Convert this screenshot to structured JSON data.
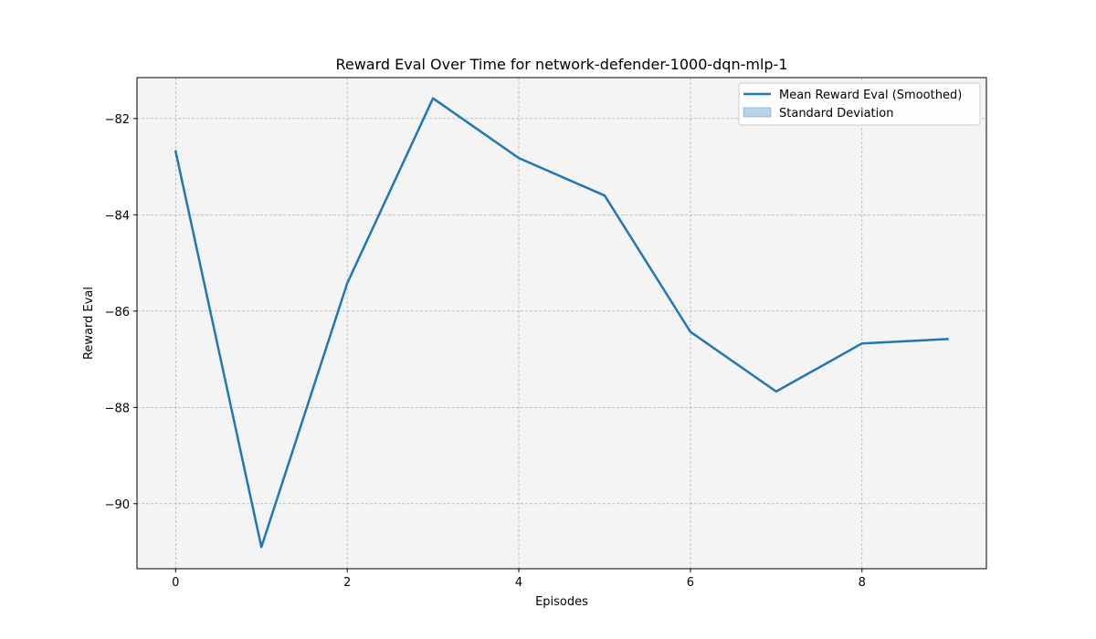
{
  "chart_data": {
    "type": "line",
    "title": "Reward Eval Over Time for network-defender-1000-dqn-mlp-1",
    "xlabel": "Episodes",
    "ylabel": "Reward Eval",
    "xlim": [
      -0.45,
      9.45
    ],
    "ylim": [
      -91.35,
      -81.15
    ],
    "x_ticks": [
      0,
      2,
      4,
      6,
      8
    ],
    "y_ticks": [
      -90,
      -88,
      -86,
      -84,
      -82
    ],
    "x_tick_labels": [
      "0",
      "2",
      "4",
      "6",
      "8"
    ],
    "y_tick_labels": [
      "−90",
      "−88",
      "−86",
      "−84",
      "−82"
    ],
    "grid": true,
    "legend_position": "top-right",
    "series": [
      {
        "name": "Mean Reward Eval (Smoothed)",
        "color": "#1f77b4",
        "x": [
          0,
          1,
          2,
          3,
          4,
          5,
          6,
          7,
          8,
          9
        ],
        "values": [
          -82.68,
          -90.9,
          -85.42,
          -81.58,
          -82.82,
          -83.6,
          -86.43,
          -87.67,
          -86.67,
          -86.58
        ]
      }
    ],
    "legend": [
      {
        "label": "Mean Reward Eval (Smoothed)",
        "kind": "line",
        "color": "#1f77b4"
      },
      {
        "label": "Standard Deviation",
        "kind": "band",
        "color": "#1f77b4"
      }
    ]
  },
  "colors": {
    "plot_background": "#f4f4f4",
    "grid": "#a0a0a0",
    "line": "#1f77b4"
  }
}
